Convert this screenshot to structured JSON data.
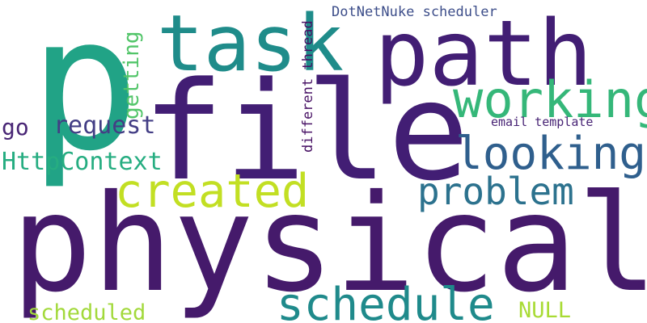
{
  "word_cloud": {
    "words": [
      {
        "text": "p",
        "color": "#21a386"
      },
      {
        "text": "file",
        "color": "#421e74"
      },
      {
        "text": "physical",
        "color": "#451a6b"
      },
      {
        "text": "path",
        "color": "#421e74"
      },
      {
        "text": "task",
        "color": "#1f8c8a"
      },
      {
        "text": "working",
        "color": "#35b779"
      },
      {
        "text": "looking",
        "color": "#2f5f8d"
      },
      {
        "text": "created",
        "color": "#c2df23"
      },
      {
        "text": "problem",
        "color": "#2c728e"
      },
      {
        "text": "schedule",
        "color": "#1f8a8b"
      },
      {
        "text": "request",
        "color": "#433e85"
      },
      {
        "text": "go",
        "color": "#482575"
      },
      {
        "text": "HttpContext",
        "color": "#26ad81"
      },
      {
        "text": "scheduled",
        "color": "#a2d93b"
      },
      {
        "text": "NULL",
        "color": "#a8db34"
      },
      {
        "text": "getting",
        "color": "#52c569"
      },
      {
        "text": "different thread",
        "color": "#471164"
      },
      {
        "text": "DotNetNuke scheduler",
        "color": "#3d4e8a"
      },
      {
        "text": "email template",
        "color": "#482475"
      }
    ]
  }
}
